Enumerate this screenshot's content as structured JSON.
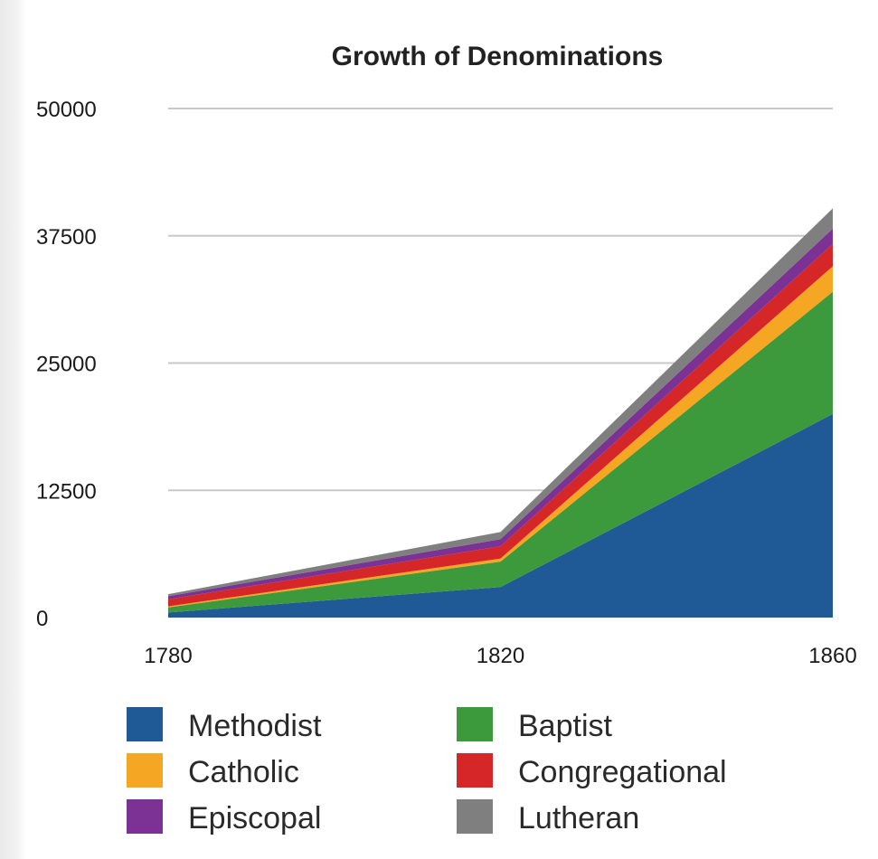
{
  "chart_data": {
    "type": "area",
    "stacked": true,
    "title": "Growth of Denominations",
    "xlabel": "",
    "ylabel": "",
    "x": [
      "1780",
      "1820",
      "1860"
    ],
    "ylim": [
      0,
      50000
    ],
    "yticks": [
      "0",
      "12500",
      "25000",
      "37500",
      "50000"
    ],
    "grid": true,
    "legend_position": "bottom",
    "series": [
      {
        "name": "Methodist",
        "color": "#1f5a96",
        "values": [
          500,
          3000,
          20000
        ]
      },
      {
        "name": "Baptist",
        "color": "#3c9a3c",
        "values": [
          500,
          2500,
          12000
        ]
      },
      {
        "name": "Catholic",
        "color": "#f5a623",
        "values": [
          100,
          300,
          2500
        ]
      },
      {
        "name": "Congregational",
        "color": "#d62728",
        "values": [
          700,
          1200,
          2200
        ]
      },
      {
        "name": "Episcopal",
        "color": "#7b3294",
        "values": [
          300,
          700,
          1500
        ]
      },
      {
        "name": "Lutheran",
        "color": "#7f7f7f",
        "values": [
          200,
          700,
          2000
        ]
      }
    ],
    "legend_order": [
      "Methodist",
      "Baptist",
      "Catholic",
      "Congregational",
      "Episcopal",
      "Lutheran"
    ]
  }
}
